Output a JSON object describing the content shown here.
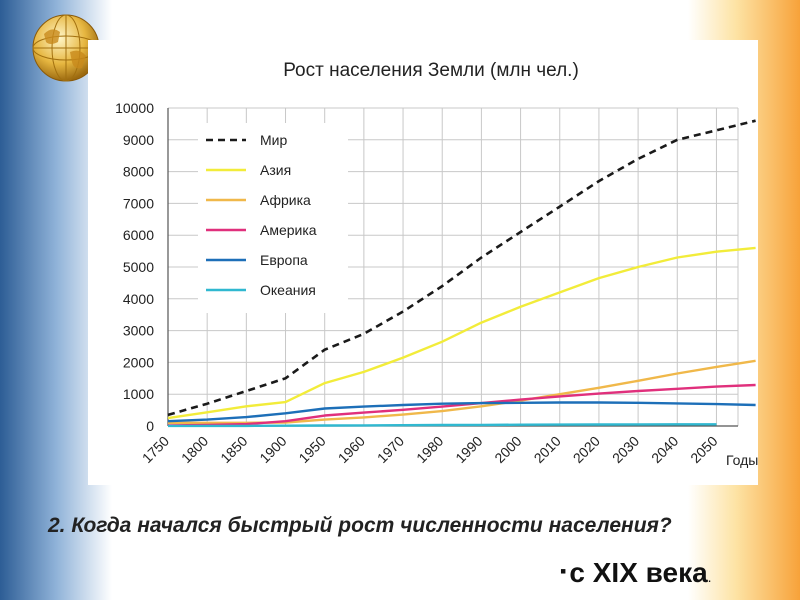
{
  "chart_data": {
    "type": "line",
    "title": "Рост населения Земли (млн чел.)",
    "xlabel": "Годы",
    "ylabel": "",
    "x": [
      1750,
      1800,
      1850,
      1900,
      1950,
      1960,
      1970,
      1980,
      1990,
      2000,
      2010,
      2020,
      2030,
      2040,
      2050
    ],
    "x_tick_labels": [
      "1750",
      "1800",
      "1850",
      "1900",
      "1950",
      "1960",
      "1970",
      "1980",
      "1990",
      "2000",
      "2010",
      "2020",
      "2030",
      "2040",
      "2050"
    ],
    "y_ticks": [
      0,
      1000,
      2000,
      3000,
      4000,
      5000,
      6000,
      7000,
      8000,
      9000,
      10000
    ],
    "ylim": [
      0,
      10000
    ],
    "grid": true,
    "legend_position": "top-left",
    "series": [
      {
        "name": "Мир",
        "color": "#1a1a1a",
        "dash": true,
        "points": [
          [
            1750,
            350
          ],
          [
            1800,
            700
          ],
          [
            1850,
            1100
          ],
          [
            1900,
            1500
          ],
          [
            1950,
            2400
          ],
          [
            1960,
            2900
          ],
          [
            1970,
            3600
          ],
          [
            1980,
            4400
          ],
          [
            1990,
            5300
          ],
          [
            2000,
            6100
          ],
          [
            2010,
            6900
          ],
          [
            2020,
            7700
          ],
          [
            2030,
            8400
          ],
          [
            2040,
            9000
          ],
          [
            2050,
            9300
          ],
          [
            2060,
            9600
          ]
        ]
      },
      {
        "name": "Азия",
        "color": "#f2ec3a",
        "dash": false,
        "points": [
          [
            1750,
            250
          ],
          [
            1800,
            430
          ],
          [
            1850,
            620
          ],
          [
            1900,
            750
          ],
          [
            1950,
            1350
          ],
          [
            1960,
            1700
          ],
          [
            1970,
            2150
          ],
          [
            1980,
            2650
          ],
          [
            1990,
            3250
          ],
          [
            2000,
            3750
          ],
          [
            2010,
            4200
          ],
          [
            2020,
            4650
          ],
          [
            2030,
            5000
          ],
          [
            2040,
            5300
          ],
          [
            2050,
            5480
          ],
          [
            2060,
            5600
          ]
        ]
      },
      {
        "name": "Африка",
        "color": "#f0b84a",
        "dash": false,
        "points": [
          [
            1750,
            100
          ],
          [
            1800,
            100
          ],
          [
            1850,
            100
          ],
          [
            1900,
            110
          ],
          [
            1950,
            200
          ],
          [
            1960,
            270
          ],
          [
            1970,
            360
          ],
          [
            1980,
            470
          ],
          [
            1990,
            620
          ],
          [
            2000,
            800
          ],
          [
            2010,
            1000
          ],
          [
            2020,
            1200
          ],
          [
            2030,
            1420
          ],
          [
            2040,
            1650
          ],
          [
            2050,
            1860
          ],
          [
            2060,
            2050
          ]
        ]
      },
      {
        "name": "Америка",
        "color": "#e0307c",
        "dash": false,
        "points": [
          [
            1750,
            20
          ],
          [
            1800,
            30
          ],
          [
            1850,
            60
          ],
          [
            1900,
            150
          ],
          [
            1950,
            330
          ],
          [
            1960,
            420
          ],
          [
            1970,
            510
          ],
          [
            1980,
            610
          ],
          [
            1990,
            720
          ],
          [
            2000,
            830
          ],
          [
            2010,
            930
          ],
          [
            2020,
            1020
          ],
          [
            2030,
            1100
          ],
          [
            2040,
            1170
          ],
          [
            2050,
            1240
          ],
          [
            2060,
            1290
          ]
        ]
      },
      {
        "name": "Европа",
        "color": "#1d6fb8",
        "dash": false,
        "points": [
          [
            1750,
            150
          ],
          [
            1800,
            200
          ],
          [
            1850,
            280
          ],
          [
            1900,
            400
          ],
          [
            1950,
            550
          ],
          [
            1960,
            610
          ],
          [
            1970,
            660
          ],
          [
            1980,
            700
          ],
          [
            1990,
            720
          ],
          [
            2000,
            730
          ],
          [
            2010,
            740
          ],
          [
            2020,
            740
          ],
          [
            2030,
            730
          ],
          [
            2040,
            710
          ],
          [
            2050,
            690
          ],
          [
            2060,
            660
          ]
        ]
      },
      {
        "name": "Океания",
        "color": "#30b8d0",
        "dash": false,
        "points": [
          [
            1750,
            2
          ],
          [
            1800,
            2
          ],
          [
            1850,
            2
          ],
          [
            1900,
            10
          ],
          [
            1950,
            15
          ],
          [
            1960,
            20
          ],
          [
            1970,
            25
          ],
          [
            1980,
            30
          ],
          [
            1990,
            35
          ],
          [
            2000,
            40
          ],
          [
            2010,
            45
          ],
          [
            2020,
            48
          ],
          [
            2030,
            50
          ],
          [
            2040,
            52
          ],
          [
            2050,
            54
          ]
        ]
      }
    ]
  },
  "question": "2. Когда начался быстрый рост численности населения?",
  "answer": {
    "bullet": "▪",
    "text": "с XIX века",
    "trailing": "."
  }
}
